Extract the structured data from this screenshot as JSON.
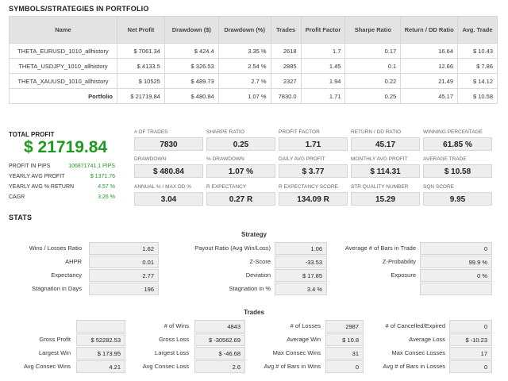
{
  "sections": {
    "portfolio_title": "SYMBOLS/STRATEGIES IN PORTFOLIO",
    "total_profit_label": "TOTAL PROFIT",
    "stats_title": "STATS"
  },
  "portfolio": {
    "headers": [
      "Name",
      "Net Profit",
      "Drawdown ($)",
      "Drawdown (%)",
      "Trades",
      "Profit Factor",
      "Sharpe Ratio",
      "Return / DD Ratio",
      "Avg. Trade"
    ],
    "rows": [
      [
        "THETA_EURUSD_1010_allhistory",
        "$ 7061.34",
        "$ 424.4",
        "3.35 %",
        "2618",
        "1.7",
        "0.17",
        "16.64",
        "$ 10.43"
      ],
      [
        "THETA_USDJPY_1010_allhistory",
        "$ 4133.5",
        "$ 326.53",
        "2.54 %",
        "2885",
        "1.45",
        "0.1",
        "12.66",
        "$ 7.86"
      ],
      [
        "THETA_XAUUSD_1010_allhistory",
        "$ 10525",
        "$ 489.73",
        "2.7 %",
        "2327",
        "1.94",
        "0.22",
        "21.49",
        "$ 14.12"
      ],
      [
        "Portfolio",
        "$ 21719.84",
        "$ 480.84",
        "1.07 %",
        "7830.0",
        "1.71",
        "0.25",
        "45.17",
        "$ 10.58"
      ]
    ]
  },
  "summary": {
    "total_profit": "$ 21719.84",
    "items": [
      {
        "label": "PROFIT IN PIPS",
        "value": "106871741.1 PIPS"
      },
      {
        "label": "YEARLY AVG PROFIT",
        "value": "$ 1371.76"
      },
      {
        "label": "YEARLY AVG % RETURN",
        "value": "4.57 %"
      },
      {
        "label": "CAGR",
        "value": "3.26 %"
      }
    ]
  },
  "metrics": [
    {
      "label": "# OF TRADES",
      "value": "7830"
    },
    {
      "label": "SHARPE RATIO",
      "value": "0.25"
    },
    {
      "label": "PROFIT FACTOR",
      "value": "1.71"
    },
    {
      "label": "RETURN / DD RATIO",
      "value": "45.17"
    },
    {
      "label": "WINNING PERCENTAGE",
      "value": "61.85 %"
    },
    {
      "label": "DRAWDOWN",
      "value": "$ 480.84"
    },
    {
      "label": "% DRAWDOWN",
      "value": "1.07 %"
    },
    {
      "label": "DAILY AVG PROFIT",
      "value": "$ 3.77"
    },
    {
      "label": "MONTHLY AVG PROFIT",
      "value": "$ 114.31"
    },
    {
      "label": "AVERAGE TRADE",
      "value": "$ 10.58"
    },
    {
      "label": "ANNUAL % / MAX DD %",
      "value": "3.04"
    },
    {
      "label": "R EXPECTANCY",
      "value": "0.27 R"
    },
    {
      "label": "R EXPECTANCY SCORE",
      "value": "134.09 R"
    },
    {
      "label": "STR QUALITY NUMBER",
      "value": "15.29"
    },
    {
      "label": "SQN SCORE",
      "value": "9.95"
    }
  ],
  "strategy": {
    "title": "Strategy",
    "rows": [
      [
        {
          "label": "Wins / Losses Ratio",
          "value": "1.62"
        },
        {
          "label": "Payout Ratio (Avg Win/Loss)",
          "value": "1.06"
        },
        {
          "label": "Average # of Bars in Trade",
          "value": "0"
        }
      ],
      [
        {
          "label": "AHPR",
          "value": "0.01"
        },
        {
          "label": "Z-Score",
          "value": "-33.53"
        },
        {
          "label": "Z-Probability",
          "value": "99.9 %"
        }
      ],
      [
        {
          "label": "Expectancy",
          "value": "2.77"
        },
        {
          "label": "Deviation",
          "value": "$ 17.85"
        },
        {
          "label": "Exposure",
          "value": "0 %"
        }
      ],
      [
        {
          "label": "Stagnation in Days",
          "value": "196"
        },
        {
          "label": "Stagnation in %",
          "value": "3.4 %"
        },
        {
          "label": "",
          "value": ""
        }
      ]
    ]
  },
  "trades": {
    "title": "Trades",
    "rows": [
      [
        {
          "label": "",
          "value": ""
        },
        {
          "label": "# of Wins",
          "value": "4843"
        },
        {
          "label": "# of Losses",
          "value": "2987"
        },
        {
          "label": "# of Cancelled/Expired",
          "value": "0"
        }
      ],
      [
        {
          "label": "Gross Profit",
          "value": "$ 52282.53"
        },
        {
          "label": "Gross Loss",
          "value": "$ -30562.69"
        },
        {
          "label": "Average Win",
          "value": "$ 10.8"
        },
        {
          "label": "Average Loss",
          "value": "$ -10.23"
        }
      ],
      [
        {
          "label": "Largest Win",
          "value": "$ 173.95"
        },
        {
          "label": "Largest Loss",
          "value": "$ -46.68"
        },
        {
          "label": "Max Consec Wins",
          "value": "31"
        },
        {
          "label": "Max Consec Losses",
          "value": "17"
        }
      ],
      [
        {
          "label": "Avg Consec Wins",
          "value": "4.21"
        },
        {
          "label": "Avg Consec Loss",
          "value": "2.6"
        },
        {
          "label": "Avg # of Bars in Wins",
          "value": "0"
        },
        {
          "label": "Avg # of Bars in Losses",
          "value": "0"
        }
      ]
    ]
  },
  "colors": {
    "accent_green": "#1e9b1e",
    "box_bg": "#efefef",
    "header_bg": "#e3e3e3"
  }
}
